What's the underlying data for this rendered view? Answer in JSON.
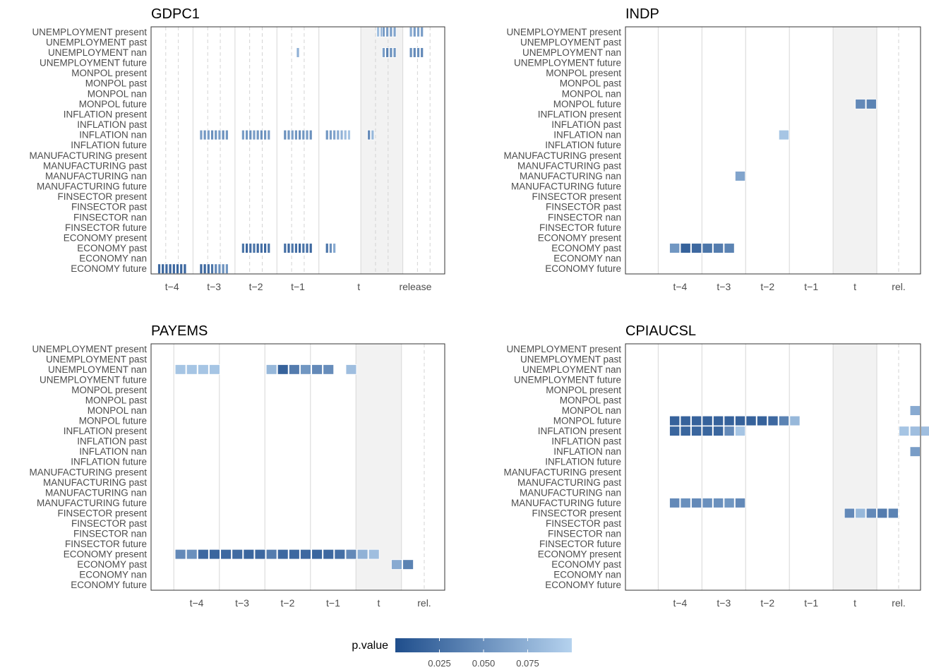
{
  "row_labels": [
    "UNEMPLOYMENT present",
    "UNEMPLOYMENT past",
    "UNEMPLOYMENT nan",
    "UNEMPLOYMENT future",
    "MONPOL present",
    "MONPOL past",
    "MONPOL nan",
    "MONPOL future",
    "INFLATION present",
    "INFLATION past",
    "INFLATION nan",
    "INFLATION future",
    "MANUFACTURING present",
    "MANUFACTURING past",
    "MANUFACTURING nan",
    "MANUFACTURING future",
    "FINSECTOR present",
    "FINSECTOR past",
    "FINSECTOR nan",
    "FINSECTOR future",
    "ECONOMY present",
    "ECONOMY past",
    "ECONOMY nan",
    "ECONOMY future"
  ],
  "colors": {
    "low": "#1f4e8c",
    "high": "#b5d2ee",
    "shade": "#f2f2f2",
    "grid_solid": "#dddddd",
    "grid_dash": "#d4d4d4",
    "border": "#333333"
  },
  "legend": {
    "title": "p.value",
    "ticks": [
      "0.025",
      "0.050",
      "0.075"
    ],
    "tick_values": [
      0.025,
      0.05,
      0.075
    ],
    "range": [
      0.0,
      0.1
    ]
  },
  "chart_data": [
    {
      "type": "heatmap",
      "title": "GDPC1",
      "x_tick_labels": [
        "t−4",
        "t−3",
        "t−2",
        "t−1",
        "t",
        "release"
      ],
      "bins_per_period": 8,
      "cells": [
        {
          "row": "UNEMPLOYMENT present",
          "bins": [
            42.5,
            43.5,
            44,
            45,
            46,
            47,
            48,
            49,
            50,
            51
          ],
          "values": [
            0.085,
            0.07,
            0.06,
            0.06,
            0.06,
            0.065,
            0.07,
            0.06,
            0.065,
            0.06
          ]
        },
        {
          "row": "UNEMPLOYMENT nan",
          "bins": [
            27.5
          ],
          "values": [
            0.075
          ]
        },
        {
          "row": "UNEMPLOYMENT nan",
          "bins": [
            44,
            45,
            46,
            47,
            48,
            49,
            50,
            51
          ],
          "values": [
            0.06,
            0.04,
            0.05,
            0.055,
            0.05,
            0.045,
            0.05,
            0.045
          ]
        },
        {
          "row": "INFLATION nan",
          "bins": [
            8,
            9,
            10,
            11,
            12,
            13,
            14,
            15,
            16,
            17,
            18,
            19,
            20,
            21,
            22,
            23,
            24,
            25,
            26,
            27,
            28,
            29,
            30,
            31,
            32,
            33,
            34,
            35,
            36,
            37,
            38
          ],
          "values": [
            0.06,
            0.055,
            0.06,
            0.05,
            0.055,
            0.06,
            0.05,
            0.055,
            0.06,
            0.055,
            0.05,
            0.06,
            0.055,
            0.05,
            0.055,
            0.06,
            0.05,
            0.055,
            0.06,
            0.055,
            0.05,
            0.055,
            0.06,
            0.05,
            0.055,
            0.06,
            0.065,
            0.07,
            0.075,
            0.085,
            0.09
          ]
        },
        {
          "row": "INFLATION nan",
          "bins": [
            40,
            41
          ],
          "values": [
            0.045,
            0.08
          ]
        },
        {
          "row": "ECONOMY past",
          "bins": [
            16,
            17,
            18,
            19,
            20,
            21,
            22,
            23,
            24,
            25,
            26,
            27,
            28,
            29,
            30,
            31,
            32,
            33,
            34
          ],
          "values": [
            0.03,
            0.02,
            0.025,
            0.03,
            0.02,
            0.025,
            0.02,
            0.03,
            0.025,
            0.02,
            0.03,
            0.025,
            0.02,
            0.03,
            0.025,
            0.02,
            0.03,
            0.05,
            0.07
          ]
        },
        {
          "row": "ECONOMY future",
          "bins": [
            0,
            1,
            2,
            3,
            4,
            5,
            6,
            7,
            8,
            9,
            10,
            11,
            12,
            13,
            14,
            15
          ],
          "values": [
            0.02,
            0.018,
            0.02,
            0.018,
            0.02,
            0.018,
            0.02,
            0.018,
            0.02,
            0.018,
            0.022,
            0.03,
            0.045,
            0.05,
            0.05,
            0.055
          ]
        }
      ]
    },
    {
      "type": "heatmap",
      "title": "INDP",
      "x_tick_labels": [
        "t−4",
        "t−3",
        "t−2",
        "t−1",
        "t",
        "rel."
      ],
      "bins_per_period": 4,
      "cells": [
        {
          "row": "MONPOL future",
          "bins": [
            17,
            18
          ],
          "values": [
            0.045,
            0.04
          ]
        },
        {
          "row": "INFLATION nan",
          "bins": [
            10
          ],
          "values": [
            0.09
          ]
        },
        {
          "row": "MANUFACTURING nan",
          "bins": [
            6
          ],
          "values": [
            0.065
          ]
        },
        {
          "row": "ECONOMY past",
          "bins": [
            0,
            1,
            2,
            3,
            4,
            5
          ],
          "values": [
            0.055,
            0.015,
            0.02,
            0.03,
            0.035,
            0.04
          ]
        }
      ]
    },
    {
      "type": "heatmap",
      "title": "PAYEMS",
      "x_tick_labels": [
        "t−4",
        "t−3",
        "t−2",
        "t−1",
        "t",
        "rel."
      ],
      "bins_per_period": 4,
      "cells": [
        {
          "row": "UNEMPLOYMENT nan",
          "bins": [
            0,
            1,
            2,
            3,
            8,
            9,
            10,
            11,
            12,
            13,
            15
          ],
          "values": [
            0.09,
            0.09,
            0.09,
            0.09,
            0.08,
            0.015,
            0.035,
            0.055,
            0.045,
            0.048,
            0.085
          ]
        },
        {
          "row": "ECONOMY present",
          "bins": [
            0,
            1,
            2,
            3,
            4,
            5,
            6,
            7,
            8,
            9,
            10,
            11,
            12,
            13,
            14,
            15,
            16,
            17
          ],
          "values": [
            0.045,
            0.05,
            0.02,
            0.018,
            0.02,
            0.022,
            0.018,
            0.02,
            0.035,
            0.02,
            0.02,
            0.02,
            0.018,
            0.02,
            0.025,
            0.045,
            0.075,
            0.085
          ]
        },
        {
          "row": "ECONOMY past",
          "bins": [
            19,
            20
          ],
          "values": [
            0.07,
            0.04
          ]
        }
      ]
    },
    {
      "type": "heatmap",
      "title": "CPIAUCSL",
      "x_tick_labels": [
        "t−4",
        "t−3",
        "t−2",
        "t−1",
        "t",
        "rel."
      ],
      "bins_per_period": 4,
      "cells": [
        {
          "row": "MONPOL nan",
          "bins": [
            22
          ],
          "values": [
            0.07
          ]
        },
        {
          "row": "MONPOL future",
          "bins": [
            0,
            1,
            2,
            3,
            4,
            5,
            6,
            7,
            8,
            9,
            10,
            11
          ],
          "values": [
            0.015,
            0.015,
            0.015,
            0.015,
            0.015,
            0.015,
            0.015,
            0.015,
            0.015,
            0.02,
            0.04,
            0.08
          ]
        },
        {
          "row": "INFLATION present",
          "bins": [
            0,
            1,
            2,
            3,
            4,
            5,
            6,
            21,
            22,
            23
          ],
          "values": [
            0.018,
            0.018,
            0.018,
            0.018,
            0.018,
            0.045,
            0.09,
            0.09,
            0.085,
            0.085
          ]
        },
        {
          "row": "INFLATION nan",
          "bins": [
            22
          ],
          "values": [
            0.06
          ]
        },
        {
          "row": "MANUFACTURING future",
          "bins": [
            0,
            1,
            2,
            3,
            4,
            5,
            6
          ],
          "values": [
            0.045,
            0.05,
            0.045,
            0.05,
            0.05,
            0.055,
            0.045
          ]
        },
        {
          "row": "FINSECTOR present",
          "bins": [
            16,
            17,
            18,
            19,
            20
          ],
          "values": [
            0.045,
            0.08,
            0.045,
            0.035,
            0.04
          ]
        }
      ]
    }
  ]
}
